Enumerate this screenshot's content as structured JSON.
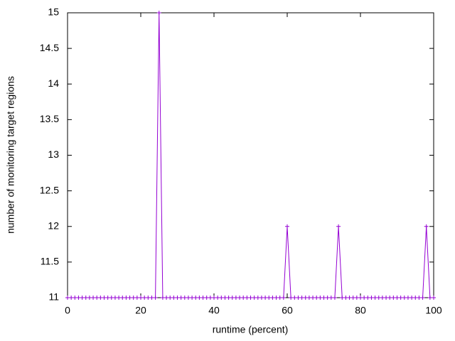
{
  "chart_data": {
    "type": "line",
    "x_label": "runtime (percent)",
    "y_label": "number of monitoring target regions",
    "x": [
      0,
      1,
      2,
      3,
      4,
      5,
      6,
      7,
      8,
      9,
      10,
      11,
      12,
      13,
      14,
      15,
      16,
      17,
      18,
      19,
      20,
      21,
      22,
      23,
      24,
      25,
      26,
      27,
      28,
      29,
      30,
      31,
      32,
      33,
      34,
      35,
      36,
      37,
      38,
      39,
      40,
      41,
      42,
      43,
      44,
      45,
      46,
      47,
      48,
      49,
      50,
      51,
      52,
      53,
      54,
      55,
      56,
      57,
      58,
      59,
      60,
      61,
      62,
      63,
      64,
      65,
      66,
      67,
      68,
      69,
      70,
      71,
      72,
      73,
      74,
      75,
      76,
      77,
      78,
      79,
      80,
      81,
      82,
      83,
      84,
      85,
      86,
      87,
      88,
      89,
      90,
      91,
      92,
      93,
      94,
      95,
      96,
      97,
      98,
      99,
      100
    ],
    "series": [
      {
        "color": "#9400d3",
        "values": [
          11,
          11,
          11,
          11,
          11,
          11,
          11,
          11,
          11,
          11,
          11,
          11,
          11,
          11,
          11,
          11,
          11,
          11,
          11,
          11,
          11,
          11,
          11,
          11,
          11,
          15,
          11,
          11,
          11,
          11,
          11,
          11,
          11,
          11,
          11,
          11,
          11,
          11,
          11,
          11,
          11,
          11,
          11,
          11,
          11,
          11,
          11,
          11,
          11,
          11,
          11,
          11,
          11,
          11,
          11,
          11,
          11,
          11,
          11,
          11,
          12,
          11,
          11,
          11,
          11,
          11,
          11,
          11,
          11,
          11,
          11,
          11,
          11,
          11,
          12,
          11,
          11,
          11,
          11,
          11,
          11,
          11,
          11,
          11,
          11,
          11,
          11,
          11,
          11,
          11,
          11,
          11,
          11,
          11,
          11,
          11,
          11,
          11,
          12,
          11,
          11
        ]
      }
    ],
    "xlim": [
      0,
      100
    ],
    "xticks": [
      0,
      20,
      40,
      60,
      80,
      100
    ],
    "ylim": [
      11,
      15
    ],
    "yticks": [
      11,
      11.5,
      12,
      12.5,
      13,
      13.5,
      14,
      14.5,
      15
    ]
  }
}
